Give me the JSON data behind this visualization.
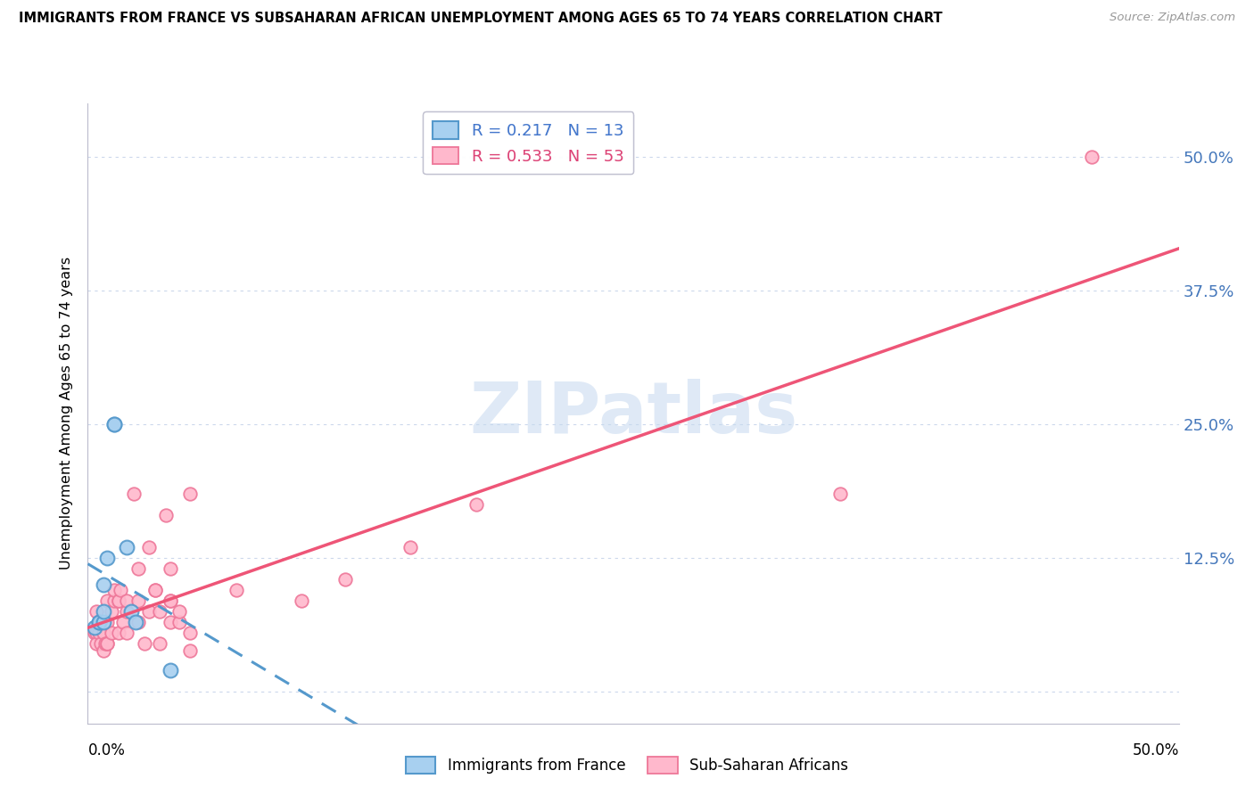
{
  "title": "IMMIGRANTS FROM FRANCE VS SUBSAHARAN AFRICAN UNEMPLOYMENT AMONG AGES 65 TO 74 YEARS CORRELATION CHART",
  "source": "Source: ZipAtlas.com",
  "ylabel": "Unemployment Among Ages 65 to 74 years",
  "xlim": [
    0.0,
    0.5
  ],
  "ylim": [
    -0.03,
    0.55
  ],
  "yticks": [
    0.0,
    0.125,
    0.25,
    0.375,
    0.5
  ],
  "ytick_labels": [
    "",
    "12.5%",
    "25.0%",
    "37.5%",
    "50.0%"
  ],
  "france_face": "#a8d0f0",
  "france_edge": "#5599cc",
  "subsaharan_face": "#ffb8cc",
  "subsaharan_edge": "#ee7799",
  "france_line_color": "#5599cc",
  "subsaharan_line_color": "#ee5577",
  "france_R": 0.217,
  "france_N": 13,
  "subsaharan_R": 0.533,
  "subsaharan_N": 53,
  "watermark": "ZIPatlas",
  "france_x": [
    0.003,
    0.005,
    0.005,
    0.007,
    0.007,
    0.007,
    0.009,
    0.012,
    0.012,
    0.018,
    0.02,
    0.022,
    0.038
  ],
  "france_y": [
    0.06,
    0.065,
    0.065,
    0.065,
    0.075,
    0.1,
    0.125,
    0.25,
    0.25,
    0.135,
    0.075,
    0.065,
    0.02
  ],
  "subsaharan_x": [
    0.003,
    0.004,
    0.004,
    0.004,
    0.005,
    0.006,
    0.007,
    0.007,
    0.008,
    0.009,
    0.009,
    0.009,
    0.009,
    0.011,
    0.011,
    0.012,
    0.012,
    0.014,
    0.014,
    0.014,
    0.015,
    0.016,
    0.018,
    0.018,
    0.018,
    0.021,
    0.023,
    0.023,
    0.023,
    0.026,
    0.028,
    0.028,
    0.031,
    0.031,
    0.033,
    0.033,
    0.036,
    0.038,
    0.038,
    0.038,
    0.038,
    0.042,
    0.042,
    0.047,
    0.047,
    0.047,
    0.068,
    0.098,
    0.118,
    0.148,
    0.178,
    0.345,
    0.46
  ],
  "subsaharan_y": [
    0.055,
    0.055,
    0.075,
    0.045,
    0.055,
    0.045,
    0.055,
    0.038,
    0.045,
    0.045,
    0.065,
    0.085,
    0.045,
    0.055,
    0.075,
    0.085,
    0.095,
    0.085,
    0.085,
    0.055,
    0.095,
    0.065,
    0.075,
    0.085,
    0.055,
    0.185,
    0.085,
    0.065,
    0.115,
    0.045,
    0.135,
    0.075,
    0.095,
    0.095,
    0.045,
    0.075,
    0.165,
    0.085,
    0.065,
    0.085,
    0.115,
    0.065,
    0.075,
    0.055,
    0.185,
    0.038,
    0.095,
    0.085,
    0.105,
    0.135,
    0.175,
    0.185,
    0.5
  ]
}
